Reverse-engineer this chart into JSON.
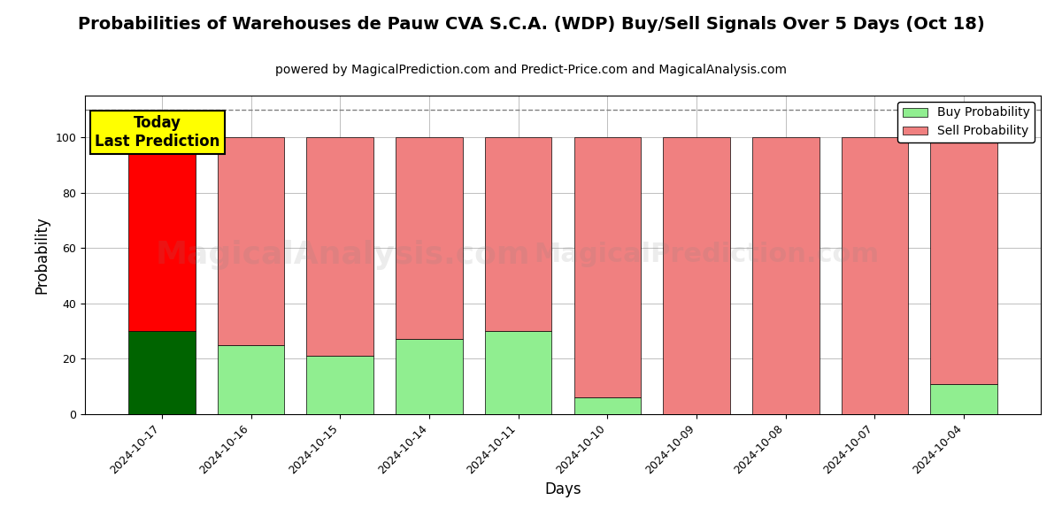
{
  "title": "Probabilities of Warehouses de Pauw CVA S.C.A. (WDP) Buy/Sell Signals Over 5 Days (Oct 18)",
  "subtitle": "powered by MagicalPrediction.com and Predict-Price.com and MagicalAnalysis.com",
  "xlabel": "Days",
  "ylabel": "Probability",
  "categories": [
    "2024-10-17",
    "2024-10-16",
    "2024-10-15",
    "2024-10-14",
    "2024-10-11",
    "2024-10-10",
    "2024-10-09",
    "2024-10-08",
    "2024-10-07",
    "2024-10-04"
  ],
  "buy_values": [
    30,
    25,
    21,
    27,
    30,
    6,
    0,
    0,
    0,
    11
  ],
  "sell_values": [
    70,
    75,
    79,
    73,
    70,
    94,
    100,
    100,
    100,
    89
  ],
  "buy_color_today": "#006400",
  "sell_color_today": "#ff0000",
  "buy_color_others": "#90ee90",
  "sell_color_others": "#f08080",
  "bar_width": 0.75,
  "ylim": [
    0,
    115
  ],
  "yticks": [
    0,
    20,
    40,
    60,
    80,
    100
  ],
  "dashed_line_y": 110,
  "today_label": "Today\nLast Prediction",
  "today_label_fontsize": 12,
  "today_box_color": "#ffff00",
  "today_box_edgecolor": "#000000",
  "legend_buy_label": "Buy Probability",
  "legend_sell_label": "Sell Probability",
  "watermark_text1": "MagicalAnalysis.com",
  "watermark_text2": "MagicalPrediction.com",
  "watermark_alpha": 0.15,
  "title_fontsize": 14,
  "subtitle_fontsize": 10,
  "axis_label_fontsize": 12,
  "tick_fontsize": 9,
  "legend_fontsize": 10,
  "figsize": [
    12,
    6
  ],
  "dpi": 100
}
